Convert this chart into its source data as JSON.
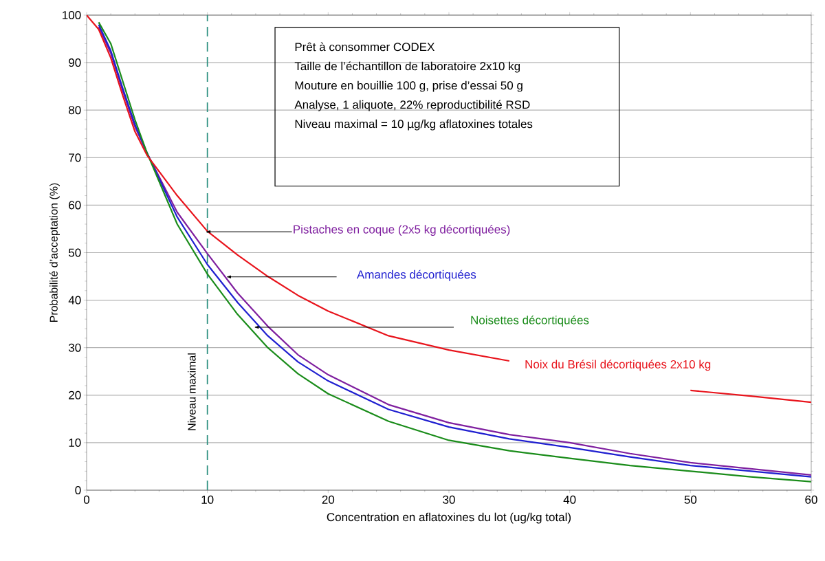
{
  "chart_data": {
    "type": "line",
    "xlabel": "Concentration en aflatoxines du lot (ug/kg total)",
    "ylabel": "Probabilité d’acceptation  (%)",
    "x": [
      1,
      2,
      3,
      4,
      5,
      7.5,
      10,
      12.5,
      15,
      17.5,
      20,
      25,
      30,
      35,
      40,
      45,
      50,
      55,
      60
    ],
    "series": [
      {
        "name": "Pistaches en coque (2x5 kg décortiquées)",
        "color": "#7f1f9f",
        "values": [
          97.5,
          92,
          84,
          76.5,
          71,
          58.5,
          49.8,
          41.5,
          34.5,
          28.5,
          24.3,
          18,
          14.2,
          11.7,
          10,
          7.7,
          5.8,
          4.5,
          3.2
        ]
      },
      {
        "name": "Amandes décortiquées",
        "color": "#1f1fd0",
        "values": [
          98,
          92.5,
          84.5,
          77,
          71,
          57.5,
          47.5,
          39.5,
          32.5,
          27,
          23,
          17,
          13.3,
          10.8,
          9,
          7,
          5.2,
          4,
          2.8
        ]
      },
      {
        "name": "Noisettes décortiquées",
        "color": "#1a8c1a",
        "values": [
          98.5,
          94,
          86,
          78,
          71,
          56,
          45.5,
          37,
          30,
          24.5,
          20.3,
          14.5,
          10.5,
          8.3,
          6.7,
          5.2,
          4,
          2.8,
          1.8
        ]
      },
      {
        "name": "Noix du Brésil décortiquées  2x10 kg",
        "color": "#e8141c",
        "x": [
          0,
          1,
          2,
          3,
          4,
          5,
          7.5,
          10,
          12.5,
          15,
          17.5,
          20,
          25,
          30,
          35,
          48,
          50,
          55,
          60
        ],
        "values": [
          100,
          97,
          91,
          83,
          75.5,
          70.5,
          62,
          54.5,
          49.5,
          45,
          41,
          37.7,
          32.5,
          29.5,
          27.2,
          null,
          21,
          19.8,
          18.5
        ]
      }
    ],
    "xlim": [
      0,
      60
    ],
    "ylim": [
      0,
      100
    ],
    "xticks": [
      0,
      10,
      20,
      30,
      40,
      50,
      60
    ],
    "yticks": [
      0,
      10,
      20,
      30,
      40,
      50,
      60,
      70,
      80,
      90,
      100
    ],
    "grid": "y",
    "marker": "none",
    "line_style": "solid",
    "ref_lines": [
      {
        "axis": "x",
        "value": 10,
        "label": "Niveau maximal",
        "color": "#2e9080",
        "line_style": "dashed"
      }
    ],
    "annotations": [
      "Prêt à consommer CODEX",
      "Taille de l’échantillon de laboratoire 2x10 kg",
      "Mouture en bouillie 100 g, prise d’essai 50 g",
      "Analyse, 1 aliquote, 22% reproductibilité RSD",
      "Niveau maximal = 10 µg/kg aflatoxines totales"
    ]
  }
}
